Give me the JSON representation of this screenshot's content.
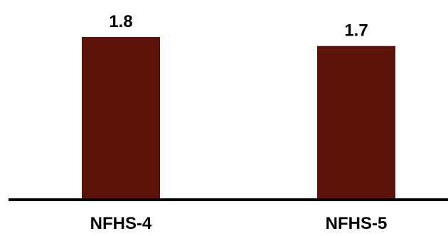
{
  "chart_data": {
    "type": "bar",
    "categories": [
      "NFHS-4",
      "NFHS-5"
    ],
    "values": [
      1.8,
      1.7
    ],
    "value_labels": [
      "1.8",
      "1.7"
    ],
    "title": "",
    "xlabel": "",
    "ylabel": "",
    "ylim": [
      0,
      2.0
    ],
    "grid": false,
    "legend": "none",
    "bar_color": "#5c130a",
    "axis_color": "#000000"
  }
}
